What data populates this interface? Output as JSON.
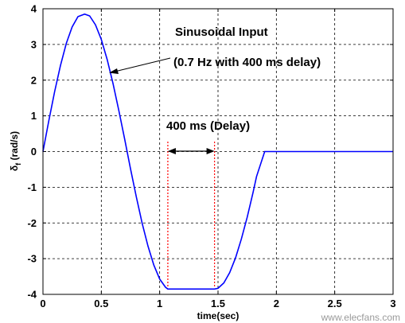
{
  "chart_data": {
    "type": "line",
    "title": "",
    "xlabel": "time(sec)",
    "ylabel": "δ_f (rad/s)",
    "xlim": [
      0,
      3
    ],
    "ylim": [
      -4,
      4
    ],
    "grid": true,
    "xticks": [
      "0",
      "0.5",
      "1",
      "1.5",
      "2",
      "2.5",
      "3"
    ],
    "yticks": [
      "4",
      "3",
      "2",
      "1",
      "0",
      "-1",
      "-2",
      "-3",
      "-4"
    ],
    "series": [
      {
        "color": "#0000ff",
        "x": [
          0,
          0.05,
          0.1,
          0.15,
          0.2,
          0.25,
          0.3,
          0.357,
          0.4,
          0.45,
          0.5,
          0.55,
          0.6,
          0.65,
          0.7,
          0.75,
          0.8,
          0.85,
          0.9,
          0.95,
          1.0,
          1.05,
          1.07,
          1.1,
          1.2,
          1.3,
          1.4,
          1.47,
          1.5,
          1.55,
          1.6,
          1.65,
          1.7,
          1.75,
          1.8,
          1.83,
          1.9,
          2.0,
          2.5,
          3.0
        ],
        "y": [
          0,
          0.86,
          1.68,
          2.41,
          3.03,
          3.49,
          3.78,
          3.85,
          3.8,
          3.55,
          3.14,
          2.58,
          1.91,
          1.15,
          0.35,
          -0.48,
          -1.27,
          -2.01,
          -2.65,
          -3.18,
          -3.57,
          -3.8,
          -3.85,
          -3.85,
          -3.85,
          -3.85,
          -3.85,
          -3.85,
          -3.83,
          -3.68,
          -3.39,
          -2.98,
          -2.45,
          -1.84,
          -1.15,
          -0.7,
          0,
          0,
          0,
          0
        ]
      }
    ],
    "annotations": {
      "title_text": "Sinusoidal Input",
      "detail_text": "(0.7 Hz with 400 ms delay)",
      "delay_text": "400 ms (Delay)",
      "delay_start": 1.07,
      "delay_end": 1.47
    }
  },
  "watermark": "www.elecfans.com"
}
